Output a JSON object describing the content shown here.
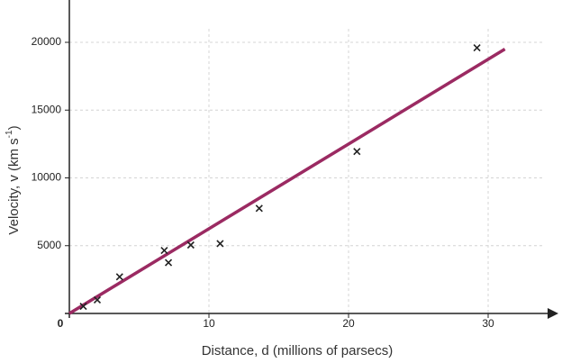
{
  "chart_data": {
    "type": "scatter",
    "x_label": "Distance, d (millions of parsecs)",
    "y_label": {
      "text": "Velocity, v (km s",
      "superscript": "-1",
      "close": ")"
    },
    "xlim": [
      0,
      34
    ],
    "ylim": [
      0,
      21000
    ],
    "xticks": [
      0,
      10,
      20,
      30
    ],
    "yticks": [
      5000,
      10000,
      15000,
      20000
    ],
    "grid": true,
    "marker_color": "#222222",
    "x": [
      1,
      2,
      3.6,
      6.8,
      7.1,
      8.7,
      10.8,
      13.6,
      20.6,
      29.2
    ],
    "values": [
      530,
      1000,
      2700,
      4650,
      3750,
      5050,
      5150,
      7750,
      11950,
      19600
    ],
    "fit_line": {
      "color": "#9b2a62",
      "x": [
        0,
        31.2
      ],
      "values": [
        0,
        19500
      ]
    }
  }
}
